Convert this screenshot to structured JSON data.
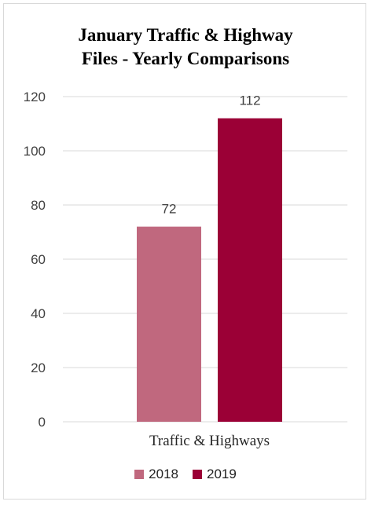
{
  "chart_data": {
    "type": "bar",
    "title_lines": [
      "January Traffic & Highway",
      "Files - Yearly Comparisons"
    ],
    "categories": [
      "Traffic & Highways"
    ],
    "series": [
      {
        "name": "2018",
        "values": [
          72
        ],
        "color": "#c0687e"
      },
      {
        "name": "2019",
        "values": [
          112
        ],
        "color": "#9b0036"
      }
    ],
    "ylim": [
      0,
      120
    ],
    "yticks": [
      "0",
      "20",
      "40",
      "60",
      "80",
      "100",
      "120"
    ],
    "data_labels": [
      "72",
      "112"
    ],
    "grid": true,
    "legend_position": "bottom"
  }
}
